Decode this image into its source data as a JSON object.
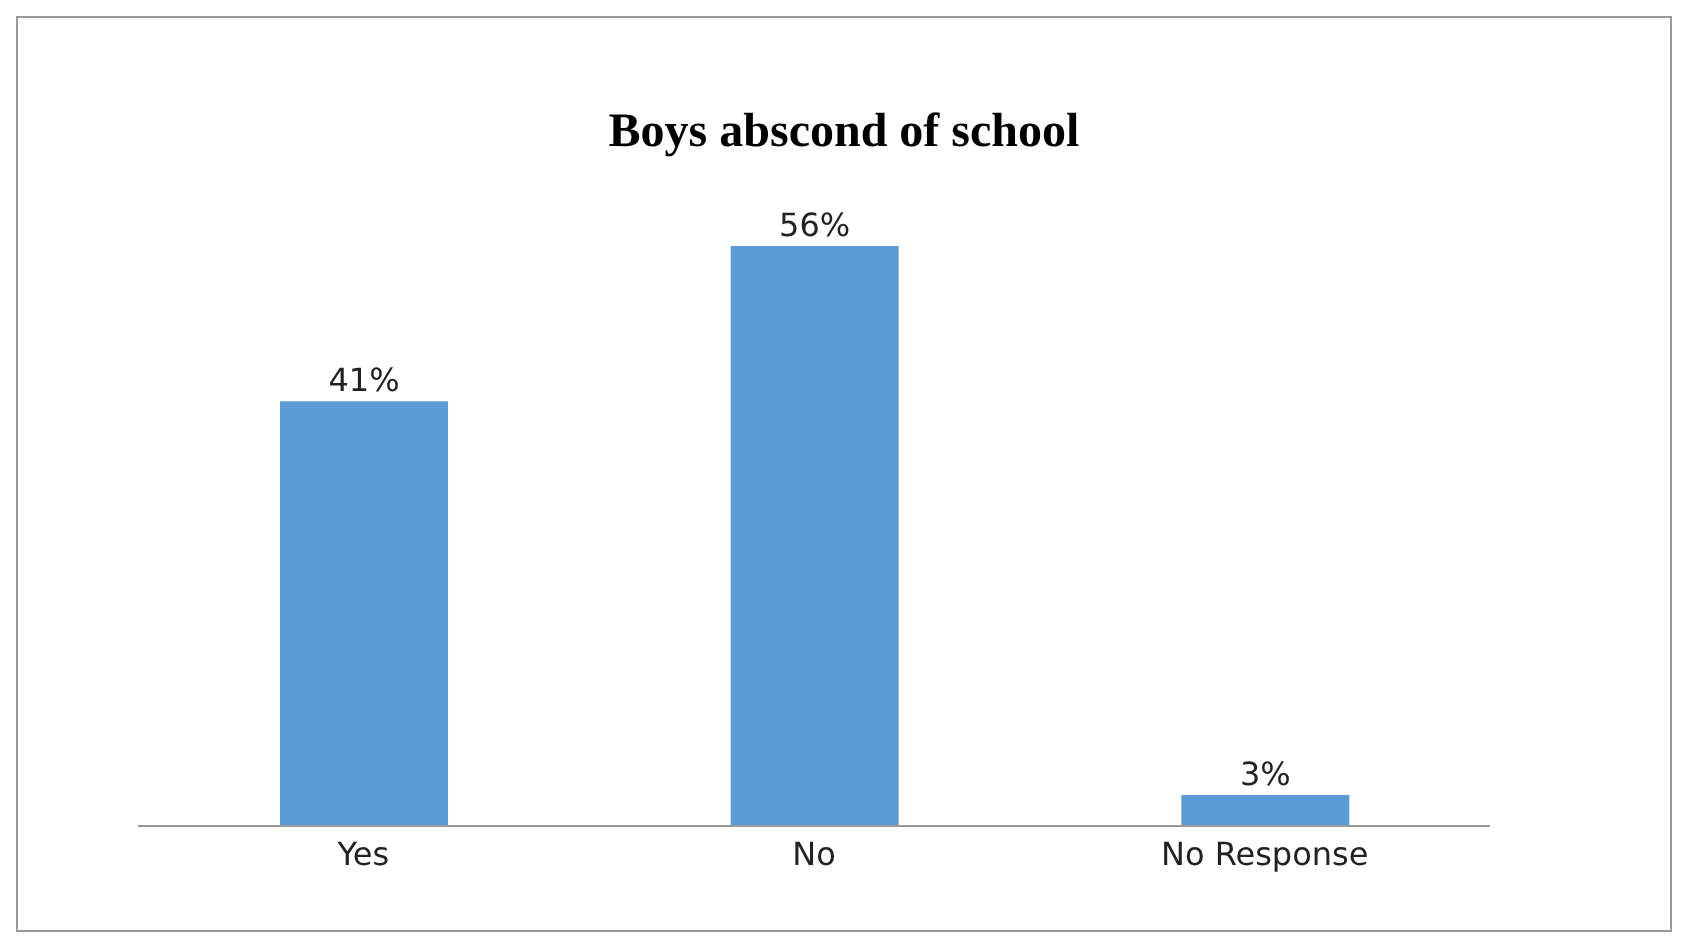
{
  "chart_data": {
    "type": "bar",
    "title": "Boys abscond of school",
    "categories": [
      "Yes",
      "No",
      "No Response"
    ],
    "values": [
      41,
      56,
      3
    ],
    "value_labels": [
      "41%",
      "56%",
      "3%"
    ],
    "color": "#5b9bd5",
    "grid": false
  }
}
